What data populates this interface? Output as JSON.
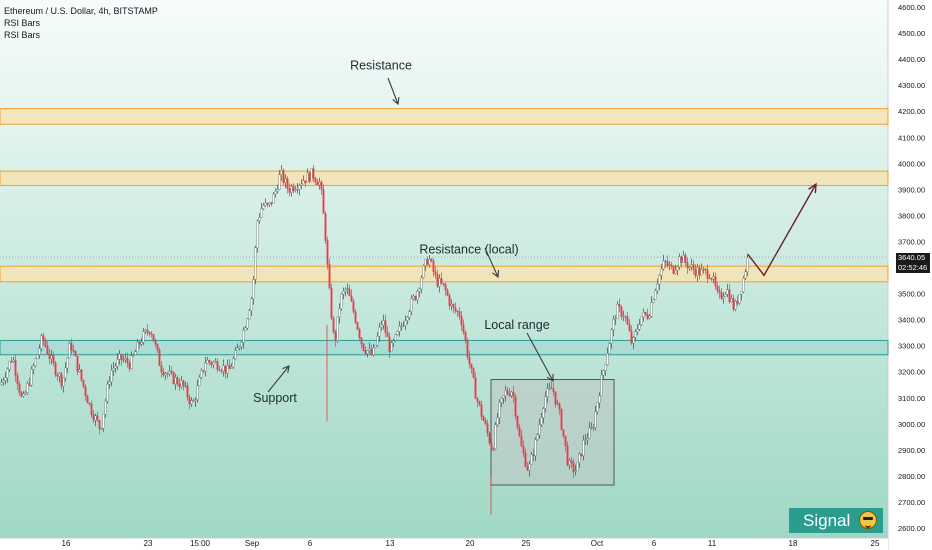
{
  "header": {
    "symbol_line": "Ethereum / U.S. Dollar, 4h, BITSTAMP",
    "indicator_1": "RSI Bars",
    "indicator_2": "RSI Bars"
  },
  "price_tag": {
    "price": "3640.05",
    "countdown": "02:52:46"
  },
  "badge": {
    "label": "Signal",
    "icon": "face-mask-emoji-icon"
  },
  "colors": {
    "candle_down": "#f23645",
    "candle_up": "#ffffff",
    "resistance_zone": "#f6e3b4",
    "resistance_border": "#f0a030",
    "support_zone": "#a6d8d4",
    "support_border": "#2a9d8f",
    "range_box": "#bfc6c4",
    "bg_top": "#f7fcfb",
    "bg_bottom": "#9fd8c5",
    "badge": "#2a9d8f"
  },
  "chart_data": {
    "type": "candlestick",
    "ylim": [
      2600,
      4600
    ],
    "yticks": [
      "4600.00",
      "4500.00",
      "4400.00",
      "4300.00",
      "4200.00",
      "4100.00",
      "4000.00",
      "3900.00",
      "3800.00",
      "3700.00",
      "3600.00",
      "3500.00",
      "3400.00",
      "3300.00",
      "3200.00",
      "3100.00",
      "3000.00",
      "2900.00",
      "2800.00",
      "2700.00",
      "2600.00"
    ],
    "xticks": [
      "16",
      "23",
      "15:00",
      "Sep",
      "6",
      "13",
      "20",
      "25",
      "Oct",
      "6",
      "11",
      "18",
      "25"
    ],
    "path": [
      [
        0,
        3150
      ],
      [
        12,
        3260
      ],
      [
        22,
        3080
      ],
      [
        30,
        3180
      ],
      [
        42,
        3330
      ],
      [
        52,
        3230
      ],
      [
        62,
        3160
      ],
      [
        70,
        3310
      ],
      [
        80,
        3180
      ],
      [
        90,
        3060
      ],
      [
        100,
        2980
      ],
      [
        110,
        3200
      ],
      [
        120,
        3250
      ],
      [
        130,
        3230
      ],
      [
        140,
        3320
      ],
      [
        150,
        3370
      ],
      [
        160,
        3220
      ],
      [
        170,
        3180
      ],
      [
        182,
        3150
      ],
      [
        192,
        3070
      ],
      [
        205,
        3240
      ],
      [
        218,
        3230
      ],
      [
        228,
        3200
      ],
      [
        236,
        3270
      ],
      [
        244,
        3370
      ],
      [
        252,
        3500
      ],
      [
        257,
        3780
      ],
      [
        262,
        3840
      ],
      [
        268,
        3830
      ],
      [
        274,
        3880
      ],
      [
        280,
        3960
      ],
      [
        288,
        3900
      ],
      [
        296,
        3920
      ],
      [
        304,
        3940
      ],
      [
        312,
        3960
      ],
      [
        320,
        3920
      ],
      [
        325,
        3720
      ],
      [
        328,
        3540
      ],
      [
        334,
        3300
      ],
      [
        340,
        3480
      ],
      [
        346,
        3520
      ],
      [
        354,
        3420
      ],
      [
        362,
        3300
      ],
      [
        372,
        3260
      ],
      [
        382,
        3400
      ],
      [
        390,
        3280
      ],
      [
        398,
        3350
      ],
      [
        408,
        3440
      ],
      [
        416,
        3500
      ],
      [
        422,
        3580
      ],
      [
        428,
        3640
      ],
      [
        436,
        3550
      ],
      [
        444,
        3520
      ],
      [
        452,
        3440
      ],
      [
        460,
        3420
      ],
      [
        468,
        3250
      ],
      [
        476,
        3100
      ],
      [
        484,
        3000
      ],
      [
        492,
        2900
      ],
      [
        498,
        3050
      ],
      [
        505,
        3120
      ],
      [
        512,
        3130
      ],
      [
        520,
        2920
      ],
      [
        528,
        2820
      ],
      [
        536,
        2940
      ],
      [
        544,
        3100
      ],
      [
        552,
        3140
      ],
      [
        560,
        3020
      ],
      [
        568,
        2840
      ],
      [
        576,
        2820
      ],
      [
        584,
        2940
      ],
      [
        592,
        2980
      ],
      [
        600,
        3150
      ],
      [
        608,
        3300
      ],
      [
        616,
        3440
      ],
      [
        624,
        3420
      ],
      [
        632,
        3300
      ],
      [
        640,
        3410
      ],
      [
        648,
        3420
      ],
      [
        656,
        3540
      ],
      [
        664,
        3620
      ],
      [
        672,
        3590
      ],
      [
        680,
        3640
      ],
      [
        690,
        3600
      ],
      [
        700,
        3580
      ],
      [
        710,
        3580
      ],
      [
        718,
        3480
      ],
      [
        726,
        3520
      ],
      [
        734,
        3440
      ],
      [
        742,
        3540
      ],
      [
        748,
        3650
      ]
    ],
    "zones": [
      {
        "kind": "resistance",
        "from": 4150,
        "to": 4210
      },
      {
        "kind": "resistance",
        "from": 3915,
        "to": 3970
      },
      {
        "kind": "resistance",
        "from": 3545,
        "to": 3605
      },
      {
        "kind": "support",
        "from": 3265,
        "to": 3320
      }
    ],
    "range_box": {
      "x_from": "22",
      "x_to": "Oct 2",
      "low": 2765,
      "high": 3170
    },
    "projection": [
      [
        748,
        3650
      ],
      [
        764,
        3570
      ],
      [
        816,
        3920
      ]
    ],
    "annotations": [
      {
        "text": "Resistance",
        "x_ref": "Sep 27",
        "y": 4375
      },
      {
        "text": "Resistance (local)",
        "x_ref": "Sep 19",
        "y": 3670
      },
      {
        "text": "Local range",
        "x_ref": "Sep 23",
        "y": 3380
      },
      {
        "text": "Support",
        "x_ref": "Aug 29",
        "y": 3100
      }
    ],
    "last_price": 3640.05
  }
}
